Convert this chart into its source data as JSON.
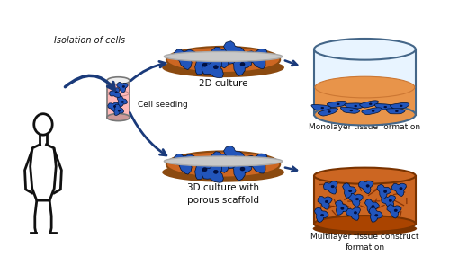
{
  "arrow_color": "#1a3a7a",
  "cell_body_color": "#2255bb",
  "petri_fill": "#cc6622",
  "petri_rim": "#8b4a10",
  "petri_rim_top": "#c8c8c8",
  "vessel_fill": "#e8944a",
  "vessel_glass": "#e8f4ff",
  "vessel_border": "#446688",
  "scaffold_fiber": "#7a2a00",
  "tube_fill": "#ffb8b8",
  "tube_border": "#777777",
  "label_2d": "2D culture",
  "label_3d": "3D culture with\nporous scaffold",
  "label_mono": "Monolayer tissue formation",
  "label_multi": "Multilayer tissue construct\nformation",
  "label_iso": "Isolation of cells",
  "label_seed": "Cell seeding",
  "text_color": "#111111",
  "font_size": 6.5
}
